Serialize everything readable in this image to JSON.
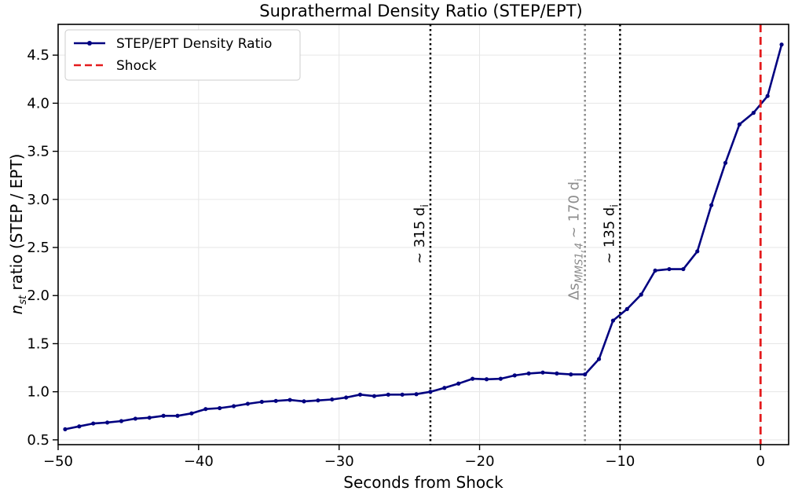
{
  "chart_data": {
    "type": "line",
    "title": "Suprathermal Density Ratio (STEP/EPT)",
    "xlabel": "Seconds from Shock",
    "ylabel_main": "n",
    "ylabel_sub": "st",
    "ylabel_rest": " ratio (STEP / EPT)",
    "xlim": [
      -50,
      2.0
    ],
    "ylim": [
      0.45,
      4.82
    ],
    "xticks": [
      -50,
      -40,
      -30,
      -20,
      -10,
      0
    ],
    "xtick_labels": [
      "−50",
      "−40",
      "−30",
      "−20",
      "−10",
      "0"
    ],
    "yticks": [
      0.5,
      1.0,
      1.5,
      2.0,
      2.5,
      3.0,
      3.5,
      4.0,
      4.5
    ],
    "ytick_labels": [
      "0.5",
      "1.0",
      "1.5",
      "2.0",
      "2.5",
      "3.0",
      "3.5",
      "4.0",
      "4.5"
    ],
    "grid": true,
    "legend_position": "top-left",
    "series": [
      {
        "name": "STEP/EPT Density Ratio",
        "color": "#000080",
        "x": [
          -49.5,
          -48.5,
          -47.5,
          -46.5,
          -45.5,
          -44.5,
          -43.5,
          -42.5,
          -41.5,
          -40.5,
          -39.5,
          -38.5,
          -37.5,
          -36.5,
          -35.5,
          -34.5,
          -33.5,
          -32.5,
          -31.5,
          -30.5,
          -29.5,
          -28.5,
          -27.5,
          -26.5,
          -25.5,
          -24.5,
          -23.5,
          -22.5,
          -21.5,
          -20.5,
          -19.5,
          -18.5,
          -17.5,
          -16.5,
          -15.5,
          -14.5,
          -13.5,
          -12.5,
          -11.5,
          -10.5,
          -9.5,
          -8.5,
          -7.5,
          -6.5,
          -5.5,
          -4.5,
          -3.5,
          -2.5,
          -1.5,
          -0.5,
          0.5,
          1.5
        ],
        "y": [
          0.61,
          0.64,
          0.67,
          0.68,
          0.695,
          0.72,
          0.73,
          0.75,
          0.75,
          0.775,
          0.82,
          0.83,
          0.85,
          0.875,
          0.895,
          0.905,
          0.915,
          0.9,
          0.91,
          0.92,
          0.94,
          0.97,
          0.955,
          0.97,
          0.97,
          0.975,
          1.0,
          1.04,
          1.085,
          1.135,
          1.13,
          1.135,
          1.17,
          1.19,
          1.2,
          1.19,
          1.18,
          1.18,
          1.34,
          1.74,
          1.86,
          2.01,
          2.26,
          2.275,
          2.275,
          2.46,
          2.94,
          3.38,
          3.78,
          3.9,
          4.075,
          4.61
        ]
      },
      {
        "name": "Shock",
        "color": "#e41a1c",
        "x": 0
      }
    ],
    "vlines": [
      {
        "x": -23.5,
        "color": "#000000",
        "label": "~ 315 d",
        "sub": "i"
      },
      {
        "x": -12.5,
        "color": "#8c8c8c",
        "label": "Δs",
        "sub": "MMS1,4",
        "rest": " ~ 170 d",
        "sub2": "i"
      },
      {
        "x": -10.0,
        "color": "#000000",
        "label": "~ 135 d",
        "sub": "i"
      }
    ]
  }
}
